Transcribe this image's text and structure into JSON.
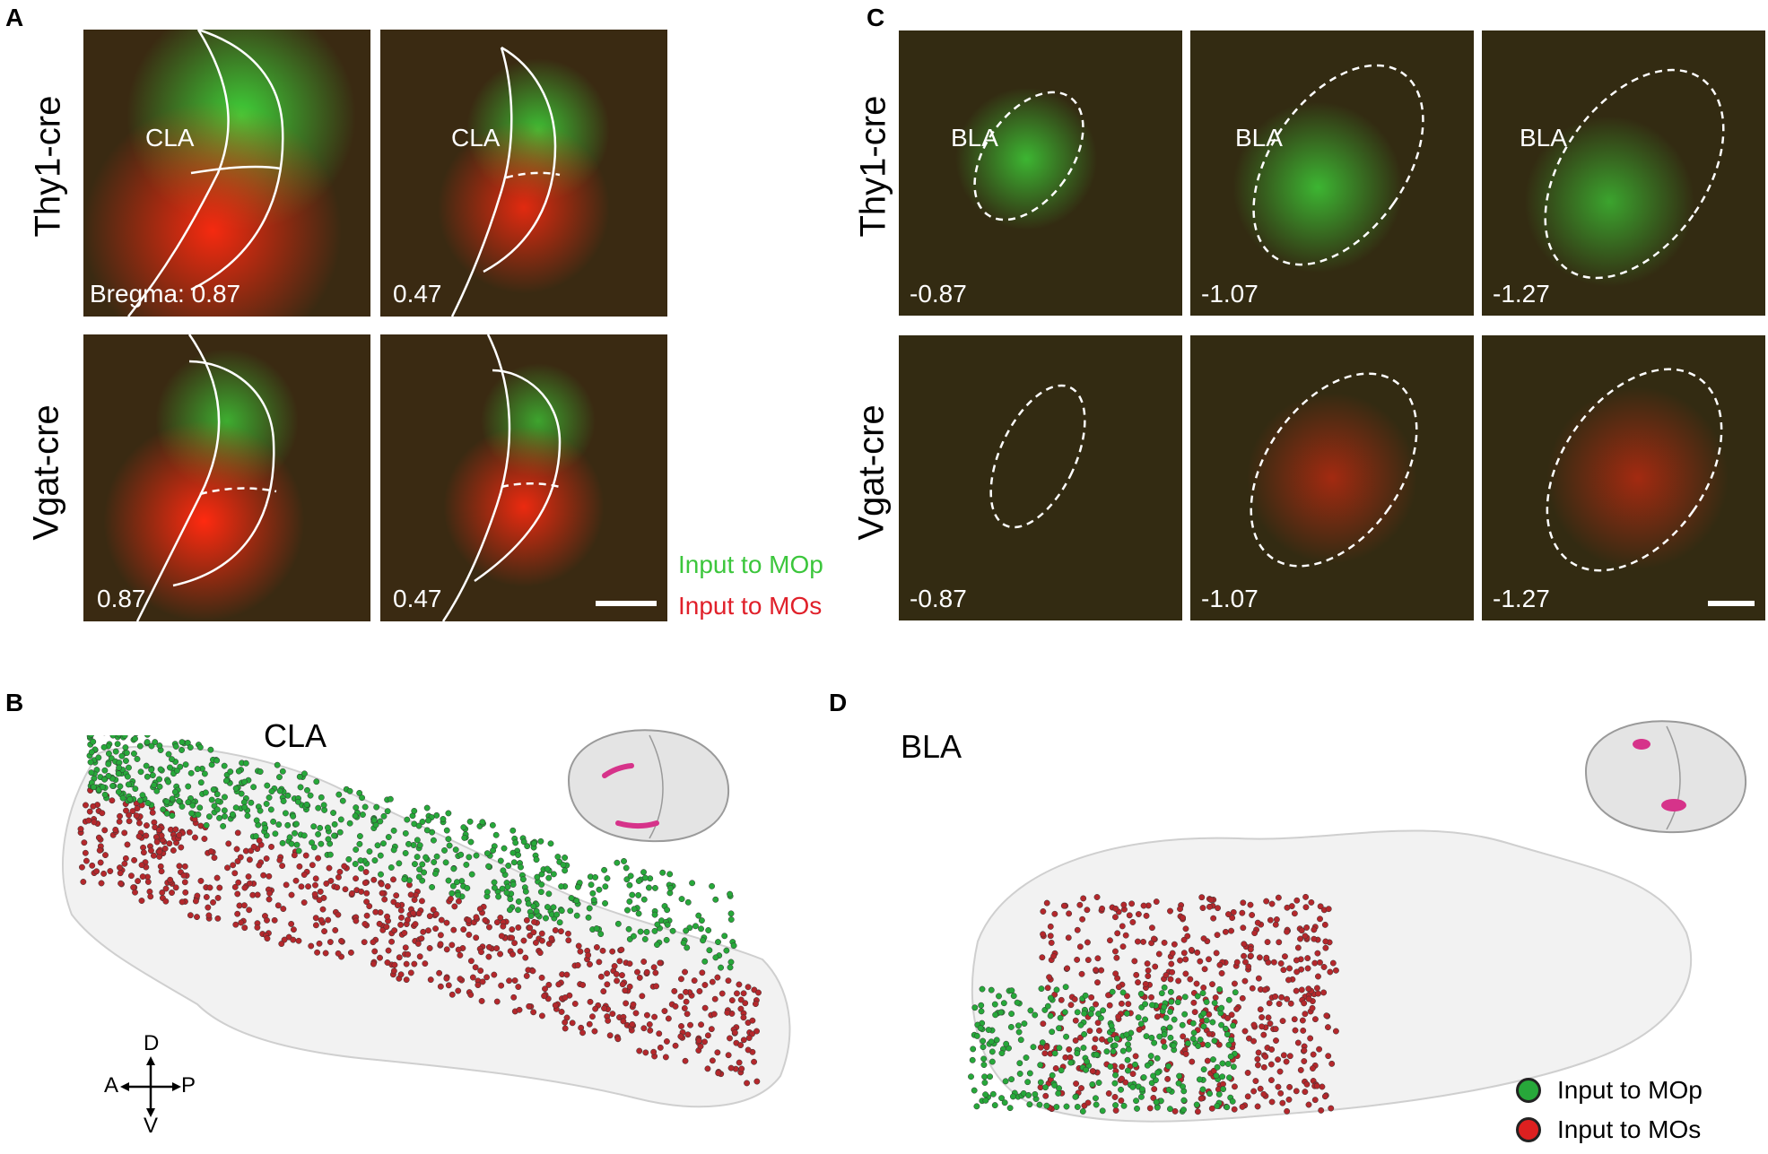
{
  "panels": {
    "A": {
      "letter": "A",
      "rows": [
        "Thy1-cre",
        "Vgat-cre"
      ],
      "region": "CLA",
      "bregma": [
        [
          "Bregma: 0.87",
          "0.47"
        ],
        [
          "0.87",
          "0.47"
        ]
      ]
    },
    "B": {
      "letter": "B",
      "title": "CLA"
    },
    "C": {
      "letter": "C",
      "rows": [
        "Thy1-cre",
        "Vgat-cre"
      ],
      "region": "BLA",
      "bregma": [
        [
          "-0.87",
          "-1.07",
          "-1.27"
        ],
        [
          "-0.87",
          "-1.07",
          "-1.27"
        ]
      ]
    },
    "D": {
      "letter": "D",
      "title": "BLA"
    }
  },
  "legend_micro": {
    "green": "Input to MOp",
    "red": "Input to MOs"
  },
  "legend_3d": {
    "green": "Input to MOp",
    "red": "Input to MOs"
  },
  "axes": {
    "d": "D",
    "v": "V",
    "a": "A",
    "p": "P"
  },
  "colors": {
    "green_label": "#3cc63c",
    "red_label": "#e0202a",
    "dot_green": "#27a83a",
    "dot_red": "#b4282c"
  }
}
